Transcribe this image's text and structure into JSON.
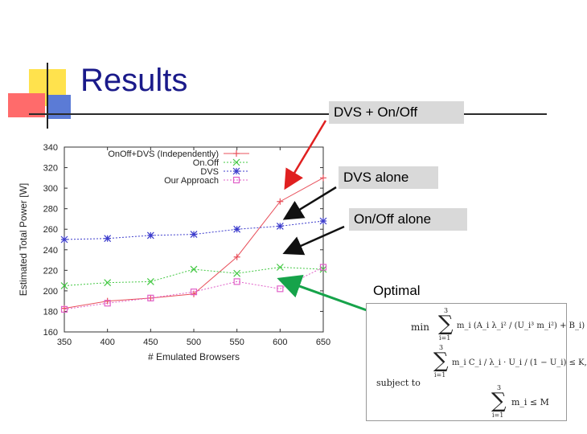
{
  "slide": {
    "title": "Results",
    "callouts": {
      "dvs_onoff": "DVS + On/Off",
      "dvs": "DVS alone",
      "onoff": "On/Off alone",
      "optimal": "Optimal"
    },
    "formula": {
      "min": "min",
      "subject_to": "subject to",
      "sum_upper": "3",
      "sum_lower": "i=1",
      "objective": "m_i (A_i λ_i² / (U_i³ m_i²) + B_i)",
      "constraint1": "m_i C_i / λ_i · U_i / (1 − U_i) ≤ K,",
      "constraint2": "m_i ≤ M"
    }
  },
  "chart_data": {
    "type": "line",
    "xlabel": "# Emulated Browsers",
    "ylabel": "Estimated Total Power [W]",
    "x": [
      350,
      400,
      450,
      500,
      550,
      600,
      650
    ],
    "xticks": [
      "350",
      "400",
      "450",
      "500",
      "550",
      "600",
      "650"
    ],
    "yticks": [
      "160",
      "180",
      "200",
      "220",
      "240",
      "260",
      "280",
      "300",
      "320",
      "340"
    ],
    "xlim": [
      350,
      650
    ],
    "ylim": [
      160,
      340
    ],
    "grid": false,
    "legend_position": "top-left",
    "series": [
      {
        "name": "OnOff+DVS (Independently)",
        "color": "#e8505b",
        "marker": "plus",
        "values": [
          183,
          190,
          193,
          197,
          233,
          287,
          310
        ]
      },
      {
        "name": "On.Off",
        "color": "#43c843",
        "marker": "x",
        "values": [
          205,
          208,
          209,
          221,
          217,
          223,
          221
        ]
      },
      {
        "name": "DVS",
        "color": "#3c3ccc",
        "marker": "star",
        "values": [
          250,
          251,
          254,
          255,
          260,
          263,
          268
        ]
      },
      {
        "name": "Our Approach",
        "color": "#e060c8",
        "marker": "square",
        "values": [
          182,
          188,
          193,
          199,
          209,
          202,
          223
        ]
      }
    ]
  }
}
